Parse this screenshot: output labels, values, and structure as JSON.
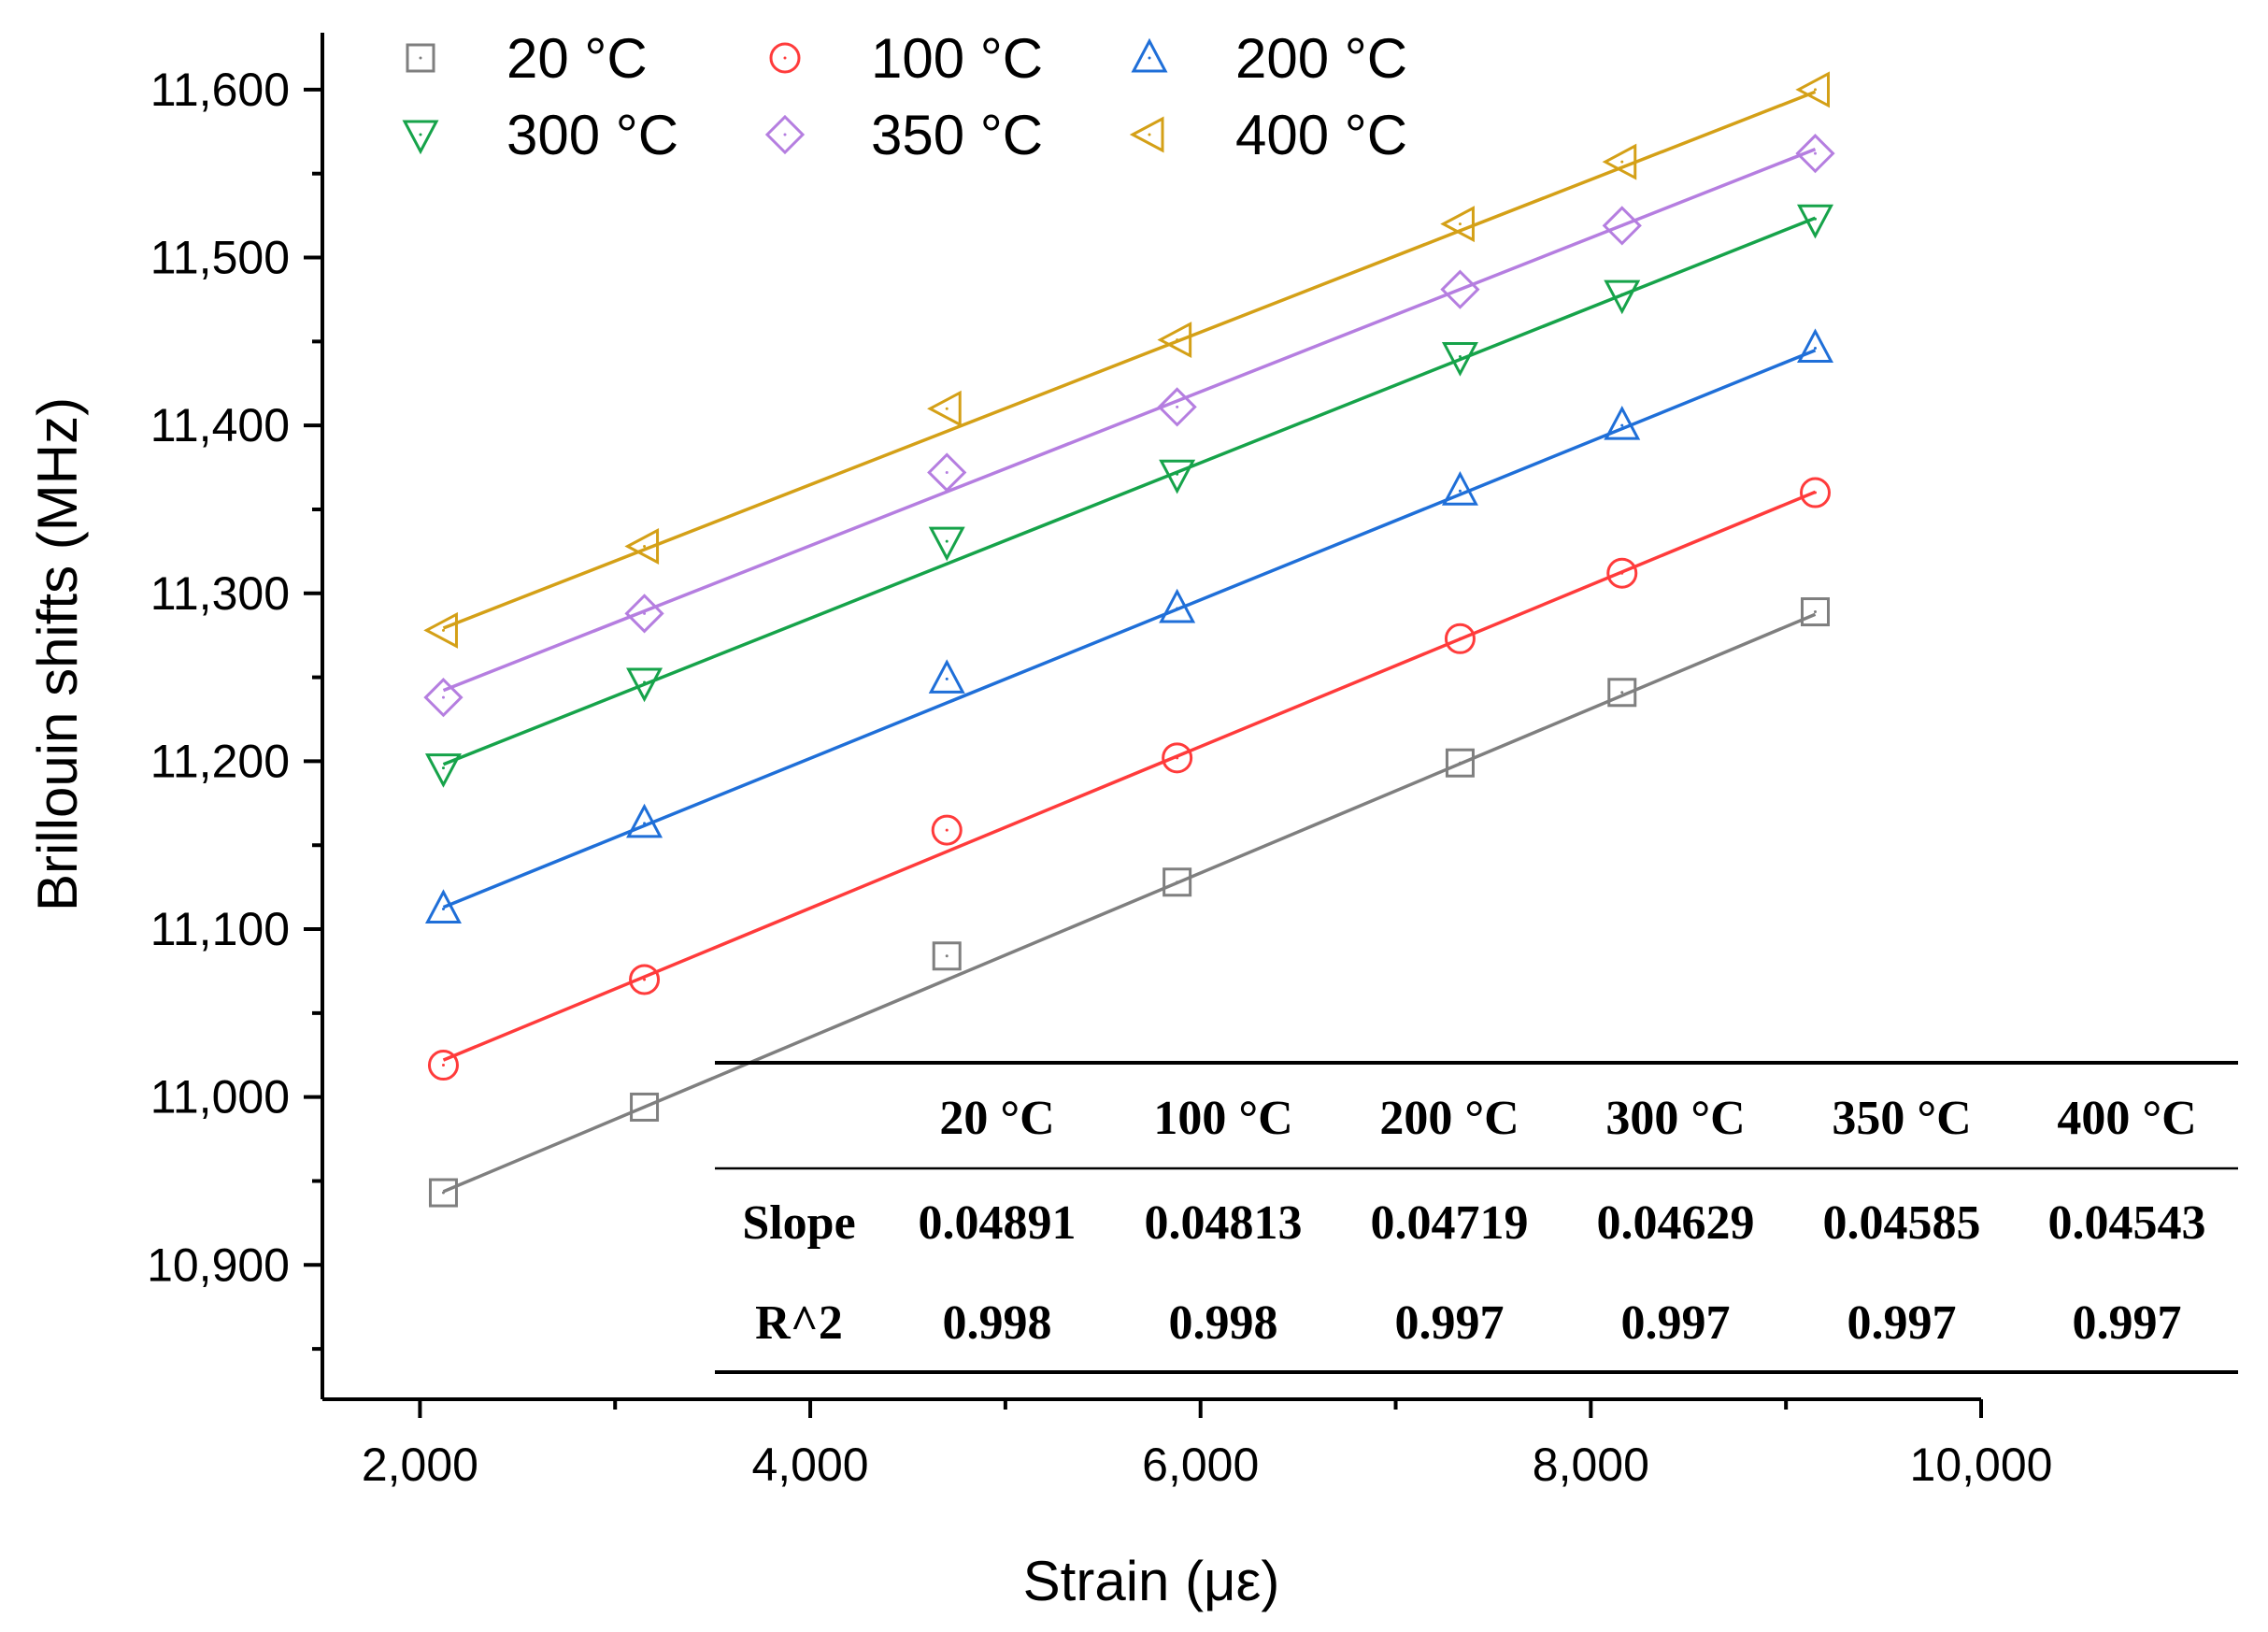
{
  "chart_data": {
    "type": "scatter",
    "title": "",
    "xlabel": "Strain (με)",
    "ylabel": "Brillouin shifts (MHz)",
    "xlim": [
      1500,
      10000
    ],
    "ylim": [
      10820,
      11620
    ],
    "x_ticks": [
      2000,
      4000,
      6000,
      8000,
      10000
    ],
    "x_tick_labels": [
      "2,000",
      "4,000",
      "6,000",
      "8,000",
      "10,000"
    ],
    "y_ticks": [
      10900,
      11000,
      11100,
      11200,
      11300,
      11400,
      11500,
      11600
    ],
    "y_tick_labels": [
      "10,900",
      "11,000",
      "11,100",
      "11,200",
      "11,300",
      "11,400",
      "11,500",
      "11,600"
    ],
    "x": [
      2120,
      3150,
      4700,
      5880,
      7330,
      8160,
      9150
    ],
    "series": [
      {
        "name": "20 °C",
        "marker": "square",
        "color": "#7f7f7f",
        "values": [
          10943,
          10994,
          11084,
          11128,
          11199,
          11241,
          11289
        ],
        "fit": {
          "slope": 0.04891,
          "intercept": 10840
        }
      },
      {
        "name": "100 °C",
        "marker": "circle",
        "color": "#ff3b3b",
        "values": [
          11019,
          11070,
          11159,
          11202,
          11273,
          11312,
          11360
        ],
        "fit": {
          "slope": 0.04813,
          "intercept": 10920
        }
      },
      {
        "name": "200 °C",
        "marker": "triangle-up",
        "color": "#1f6fd8",
        "values": [
          11112,
          11163,
          11249,
          11291,
          11361,
          11400,
          11446
        ],
        "fit": {
          "slope": 0.04719,
          "intercept": 11013
        }
      },
      {
        "name": "300 °C",
        "marker": "triangle-down",
        "color": "#16a34a",
        "values": [
          11196,
          11247,
          11331,
          11371,
          11441,
          11478,
          11523
        ],
        "fit": {
          "slope": 0.04629,
          "intercept": 11100
        }
      },
      {
        "name": "350 °C",
        "marker": "diamond",
        "color": "#b57ee0",
        "values": [
          11238,
          11288,
          11372,
          11411,
          11481,
          11519,
          11562
        ],
        "fit": {
          "slope": 0.04585,
          "intercept": 11145
        }
      },
      {
        "name": "400 °C",
        "marker": "triangle-left",
        "color": "#d4a017",
        "values": [
          11278,
          11328,
          11410,
          11451,
          11520,
          11557,
          11600
        ],
        "fit": {
          "slope": 0.04543,
          "intercept": 11183
        }
      }
    ],
    "legend_position": "top-left",
    "table": {
      "headers": [
        "",
        "20 °C",
        "100 °C",
        "200 °C",
        "300 °C",
        "350 °C",
        "400 °C"
      ],
      "rows": [
        [
          "Slope",
          "0.04891",
          "0.04813",
          "0.04719",
          "0.04629",
          "0.04585",
          "0.04543"
        ],
        [
          "R^2",
          "0.998",
          "0.998",
          "0.997",
          "0.997",
          "0.997",
          "0.997"
        ]
      ]
    }
  }
}
